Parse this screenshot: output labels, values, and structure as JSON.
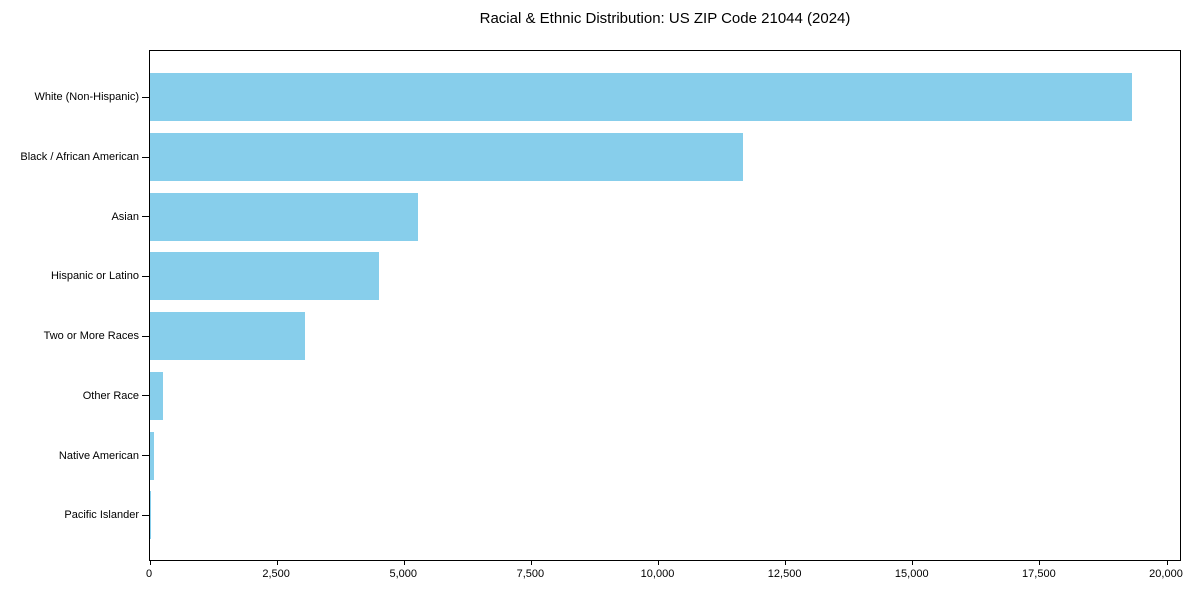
{
  "figure": {
    "background": "#ffffff"
  },
  "chart_data": {
    "type": "bar",
    "orientation": "horizontal",
    "title": "Racial & Ethnic Distribution: US ZIP Code 21044 (2024)",
    "xlabel": "",
    "ylabel": "",
    "categories": [
      "White (Non-Hispanic)",
      "Black / African American",
      "Asian",
      "Hispanic or Latino",
      "Two or More Races",
      "Other Race",
      "Native American",
      "Pacific Islander"
    ],
    "values": [
      19320,
      11660,
      5280,
      4500,
      3050,
      260,
      75,
      10
    ],
    "bar_color": "#87CEEB",
    "axis_color": "#000000",
    "text_color": "#000000",
    "x_ticks": [
      0,
      2500,
      5000,
      7500,
      10000,
      12500,
      15000,
      17500,
      20000
    ],
    "x_tick_labels": [
      "0",
      "2,500",
      "5,000",
      "7,500",
      "10,000",
      "12,500",
      "15,000",
      "17,500",
      "20,000"
    ],
    "xlim": [
      0,
      20260
    ],
    "grid": false,
    "legend": "none"
  }
}
